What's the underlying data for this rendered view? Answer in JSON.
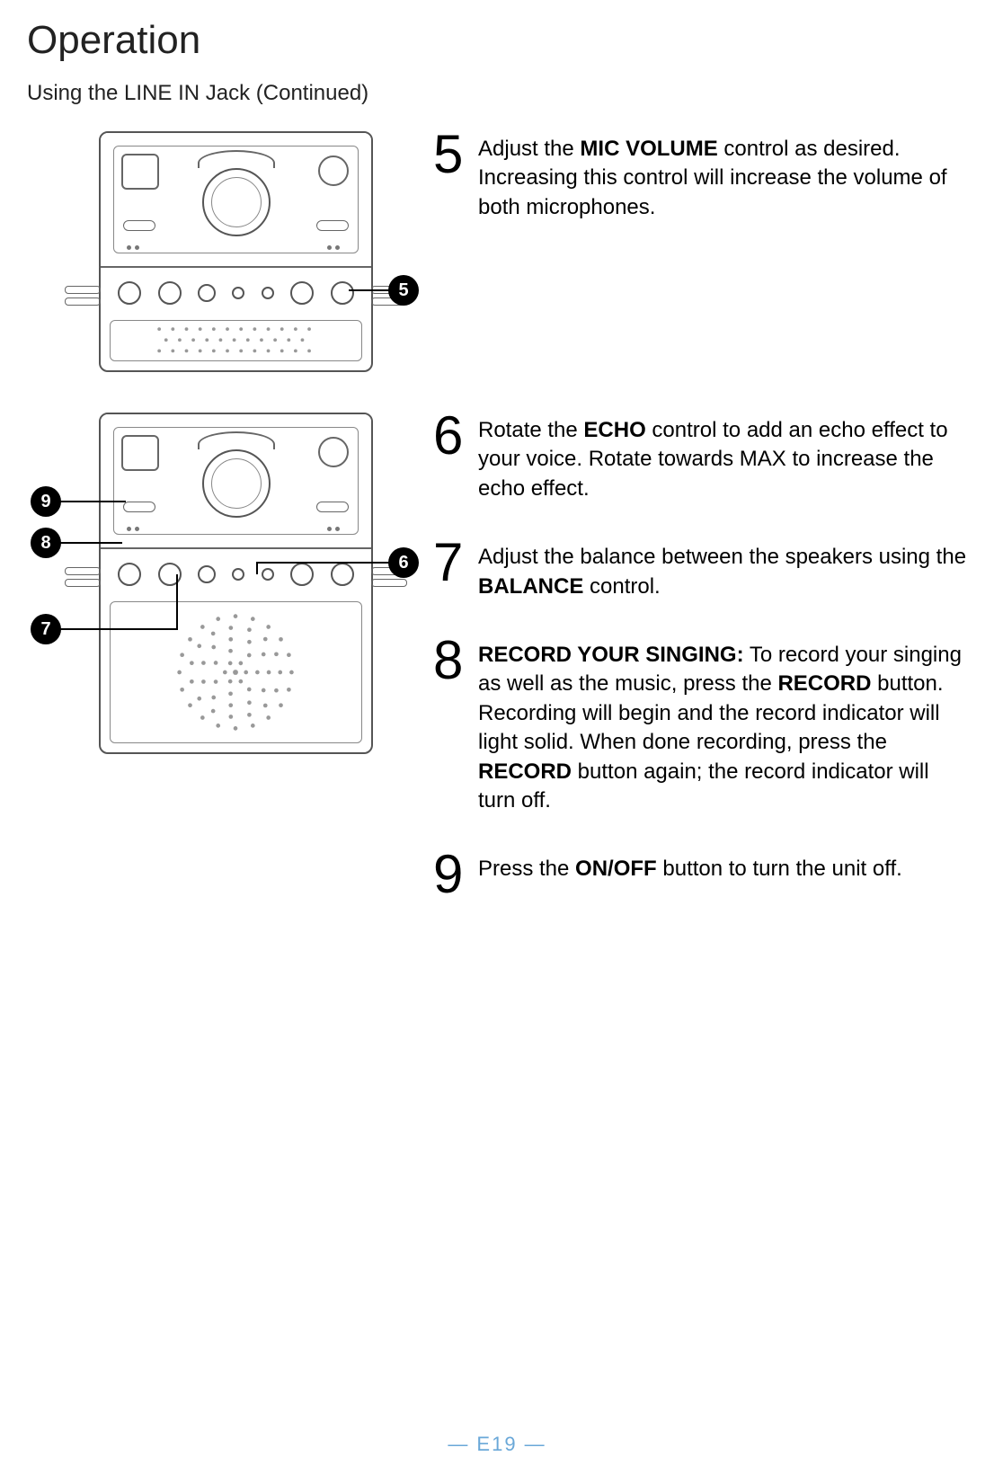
{
  "page_title": "Operation",
  "subtitle": "Using the LINE IN Jack (Continued)",
  "steps": {
    "s5": {
      "num": "5",
      "html": "Adjust the <b>MIC VOLUME</b> control as desired. Increasing this control will increase the volume of both microphones."
    },
    "s6": {
      "num": "6",
      "html": " Rotate the <b>ECHO</b> control to add an echo effect to your voice. Rotate towards MAX to increase the echo effect."
    },
    "s7": {
      "num": "7",
      "html": " Adjust the balance between the speakers using the <b>BALANCE</b> control."
    },
    "s8": {
      "num": "8",
      "html": "<b>RECORD YOUR SINGING:</b> To record your singing as well as the music, press the <b>RECORD</b> button. Recording will begin and the record indicator will light solid. When done recording, press the <b>RECORD</b> button again; the record indicator will turn off."
    },
    "s9": {
      "num": "9",
      "html": "Press the <b>ON/OFF</b> button to turn the unit off."
    }
  },
  "callouts": {
    "c5": "5",
    "c6": "6",
    "c7": "7",
    "c8": "8",
    "c9": "9"
  },
  "footer": "— E19 —",
  "colors": {
    "text": "#000000",
    "accent": "#6aa8d8",
    "diagram_stroke": "#555555",
    "callout_bg": "#000000"
  },
  "typography": {
    "title_fontsize": 44,
    "subtitle_fontsize": 24,
    "body_fontsize": 24,
    "stepnum_fontsize": 60,
    "footer_fontsize": 22
  }
}
